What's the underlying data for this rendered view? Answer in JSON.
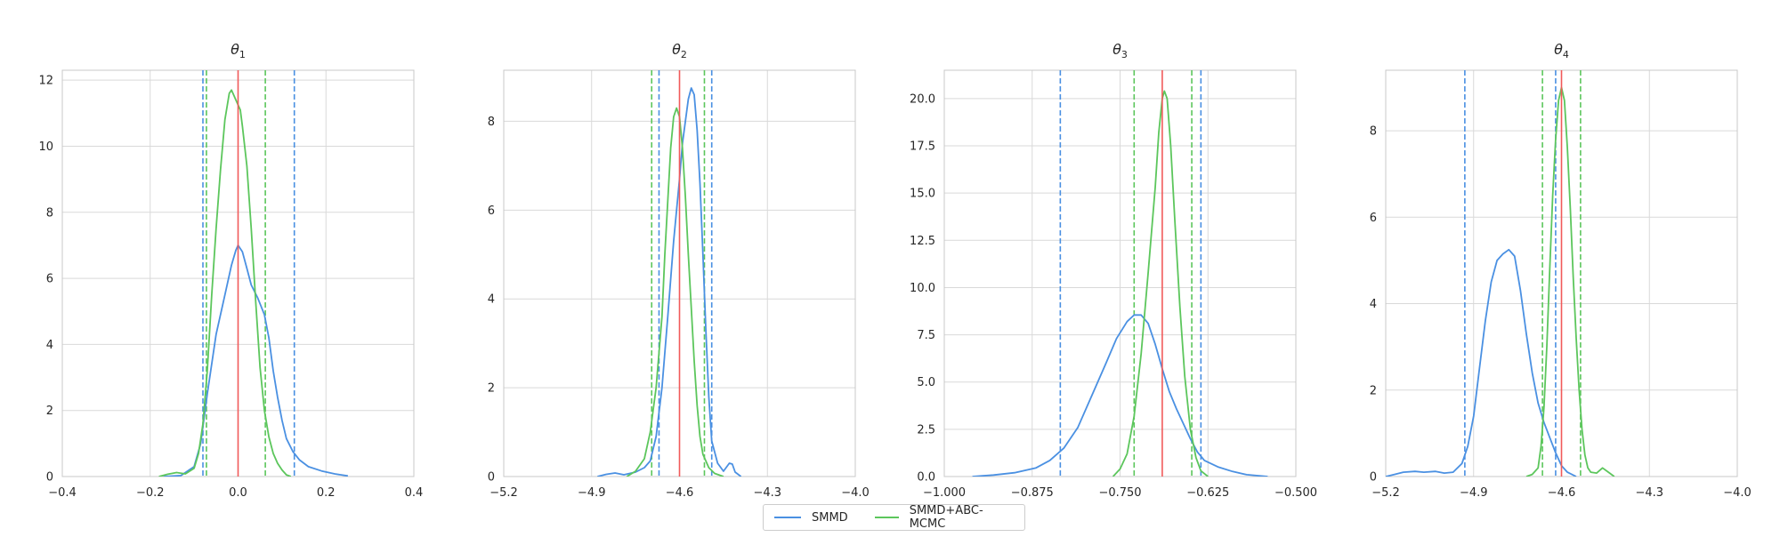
{
  "chart_data": [
    {
      "type": "line",
      "title": "θ1",
      "title_base": "θ",
      "title_sub": "1",
      "xlim": [
        -0.4,
        0.4
      ],
      "ylim": [
        0,
        12.3
      ],
      "xticks": [
        -0.4,
        -0.2,
        0.0,
        0.2,
        0.4
      ],
      "xtick_labels": [
        "−0.4",
        "−0.2",
        "0.0",
        "0.2",
        "0.4"
      ],
      "yticks": [
        0,
        2,
        4,
        6,
        8,
        10,
        12
      ],
      "ytick_labels": [
        "0",
        "2",
        "4",
        "6",
        "8",
        "10",
        "12"
      ],
      "grid": true,
      "true_value": 0.0,
      "series": [
        {
          "name": "SMMD",
          "color": "#4a90e2",
          "points": [
            [
              -0.17,
              0
            ],
            [
              -0.13,
              0.03
            ],
            [
              -0.1,
              0.3
            ],
            [
              -0.085,
              1
            ],
            [
              -0.07,
              2.5
            ],
            [
              -0.05,
              4.3
            ],
            [
              -0.03,
              5.5
            ],
            [
              -0.015,
              6.4
            ],
            [
              -0.005,
              6.85
            ],
            [
              0.0,
              7.0
            ],
            [
              0.01,
              6.8
            ],
            [
              0.02,
              6.3
            ],
            [
              0.03,
              5.8
            ],
            [
              0.045,
              5.4
            ],
            [
              0.06,
              4.9
            ],
            [
              0.07,
              4.2
            ],
            [
              0.08,
              3.2
            ],
            [
              0.09,
              2.4
            ],
            [
              0.1,
              1.7
            ],
            [
              0.11,
              1.15
            ],
            [
              0.125,
              0.75
            ],
            [
              0.14,
              0.5
            ],
            [
              0.16,
              0.3
            ],
            [
              0.19,
              0.17
            ],
            [
              0.22,
              0.08
            ],
            [
              0.25,
              0.02
            ]
          ],
          "ci": [
            -0.08,
            0.128
          ]
        },
        {
          "name": "SMMD+ABC-MCMC",
          "color": "#5cc65c",
          "points": [
            [
              -0.18,
              0
            ],
            [
              -0.16,
              0.07
            ],
            [
              -0.14,
              0.12
            ],
            [
              -0.12,
              0.08
            ],
            [
              -0.1,
              0.25
            ],
            [
              -0.09,
              0.7
            ],
            [
              -0.08,
              1.6
            ],
            [
              -0.07,
              3.2
            ],
            [
              -0.06,
              5.5
            ],
            [
              -0.05,
              7.5
            ],
            [
              -0.04,
              9.3
            ],
            [
              -0.03,
              10.8
            ],
            [
              -0.02,
              11.6
            ],
            [
              -0.015,
              11.7
            ],
            [
              -0.005,
              11.4
            ],
            [
              0.005,
              11.1
            ],
            [
              0.01,
              10.6
            ],
            [
              0.02,
              9.4
            ],
            [
              0.03,
              7.5
            ],
            [
              0.04,
              5.3
            ],
            [
              0.05,
              3.3
            ],
            [
              0.06,
              2.0
            ],
            [
              0.07,
              1.2
            ],
            [
              0.08,
              0.7
            ],
            [
              0.09,
              0.4
            ],
            [
              0.1,
              0.2
            ],
            [
              0.11,
              0.05
            ],
            [
              0.12,
              0
            ]
          ],
          "ci": [
            -0.072,
            0.062
          ]
        }
      ]
    },
    {
      "type": "line",
      "title": "θ2",
      "title_base": "θ",
      "title_sub": "2",
      "xlim": [
        -5.2,
        -4.0
      ],
      "ylim": [
        0,
        9.15
      ],
      "xticks": [
        -5.2,
        -4.9,
        -4.6,
        -4.3,
        -4.0
      ],
      "xtick_labels": [
        "−5.2",
        "−4.9",
        "−4.6",
        "−4.3",
        "−4.0"
      ],
      "yticks": [
        0,
        2,
        4,
        6,
        8
      ],
      "ytick_labels": [
        "0",
        "2",
        "4",
        "6",
        "8"
      ],
      "grid": true,
      "true_value": -4.6,
      "series": [
        {
          "name": "SMMD",
          "color": "#4a90e2",
          "points": [
            [
              -4.88,
              0
            ],
            [
              -4.85,
              0.05
            ],
            [
              -4.82,
              0.08
            ],
            [
              -4.79,
              0.04
            ],
            [
              -4.75,
              0.1
            ],
            [
              -4.72,
              0.2
            ],
            [
              -4.7,
              0.35
            ],
            [
              -4.68,
              0.9
            ],
            [
              -4.66,
              2.0
            ],
            [
              -4.64,
              3.6
            ],
            [
              -4.62,
              5.3
            ],
            [
              -4.6,
              6.7
            ],
            [
              -4.59,
              7.5
            ],
            [
              -4.58,
              8.0
            ],
            [
              -4.57,
              8.5
            ],
            [
              -4.56,
              8.75
            ],
            [
              -4.55,
              8.6
            ],
            [
              -4.54,
              7.8
            ],
            [
              -4.53,
              6.6
            ],
            [
              -4.52,
              5.0
            ],
            [
              -4.51,
              3.3
            ],
            [
              -4.5,
              1.8
            ],
            [
              -4.49,
              0.8
            ],
            [
              -4.47,
              0.3
            ],
            [
              -4.45,
              0.12
            ],
            [
              -4.43,
              0.3
            ],
            [
              -4.42,
              0.28
            ],
            [
              -4.41,
              0.1
            ],
            [
              -4.39,
              0
            ]
          ],
          "ci": [
            -4.67,
            -4.49
          ]
        },
        {
          "name": "SMMD+ABC-MCMC",
          "color": "#5cc65c",
          "points": [
            [
              -4.78,
              0
            ],
            [
              -4.75,
              0.12
            ],
            [
              -4.72,
              0.4
            ],
            [
              -4.7,
              1.0
            ],
            [
              -4.68,
              2.0
            ],
            [
              -4.66,
              3.6
            ],
            [
              -4.65,
              5.0
            ],
            [
              -4.64,
              6.2
            ],
            [
              -4.63,
              7.4
            ],
            [
              -4.62,
              8.1
            ],
            [
              -4.61,
              8.3
            ],
            [
              -4.6,
              8.1
            ],
            [
              -4.59,
              7.4
            ],
            [
              -4.58,
              6.3
            ],
            [
              -4.57,
              5.0
            ],
            [
              -4.56,
              3.8
            ],
            [
              -4.55,
              2.6
            ],
            [
              -4.54,
              1.6
            ],
            [
              -4.53,
              0.9
            ],
            [
              -4.52,
              0.5
            ],
            [
              -4.5,
              0.2
            ],
            [
              -4.48,
              0.07
            ],
            [
              -4.45,
              0
            ]
          ],
          "ci": [
            -4.695,
            -4.515
          ]
        }
      ]
    },
    {
      "type": "line",
      "title": "θ3",
      "title_base": "θ",
      "title_sub": "3",
      "xlim": [
        -1.0,
        -0.5
      ],
      "ylim": [
        0,
        21.5
      ],
      "xticks": [
        -1.0,
        -0.875,
        -0.75,
        -0.625,
        -0.5
      ],
      "xtick_labels": [
        "−1.000",
        "−0.875",
        "−0.750",
        "−0.625",
        "−0.500"
      ],
      "yticks": [
        0,
        2.5,
        5,
        7.5,
        10,
        12.5,
        15,
        17.5,
        20
      ],
      "ytick_labels": [
        "0.0",
        "2.5",
        "5.0",
        "7.5",
        "10.0",
        "12.5",
        "15.0",
        "17.5",
        "20.0"
      ],
      "grid": true,
      "true_value": -0.69,
      "series": [
        {
          "name": "SMMD",
          "color": "#4a90e2",
          "points": [
            [
              -0.96,
              0
            ],
            [
              -0.93,
              0.08
            ],
            [
              -0.9,
              0.2
            ],
            [
              -0.87,
              0.45
            ],
            [
              -0.85,
              0.85
            ],
            [
              -0.83,
              1.5
            ],
            [
              -0.81,
              2.6
            ],
            [
              -0.79,
              4.3
            ],
            [
              -0.77,
              6.0
            ],
            [
              -0.755,
              7.3
            ],
            [
              -0.74,
              8.2
            ],
            [
              -0.73,
              8.55
            ],
            [
              -0.72,
              8.55
            ],
            [
              -0.71,
              8.1
            ],
            [
              -0.7,
              7.0
            ],
            [
              -0.69,
              5.7
            ],
            [
              -0.68,
              4.5
            ],
            [
              -0.67,
              3.6
            ],
            [
              -0.66,
              2.8
            ],
            [
              -0.65,
              2.0
            ],
            [
              -0.64,
              1.3
            ],
            [
              -0.63,
              0.85
            ],
            [
              -0.61,
              0.5
            ],
            [
              -0.59,
              0.27
            ],
            [
              -0.57,
              0.1
            ],
            [
              -0.54,
              0
            ]
          ],
          "ci": [
            -0.835,
            -0.635
          ]
        },
        {
          "name": "SMMD+ABC-MCMC",
          "color": "#5cc65c",
          "points": [
            [
              -0.76,
              0
            ],
            [
              -0.75,
              0.4
            ],
            [
              -0.74,
              1.2
            ],
            [
              -0.73,
              3.2
            ],
            [
              -0.72,
              6.5
            ],
            [
              -0.71,
              10.8
            ],
            [
              -0.7,
              15.3
            ],
            [
              -0.695,
              18.2
            ],
            [
              -0.69,
              20.0
            ],
            [
              -0.687,
              20.4
            ],
            [
              -0.683,
              20.0
            ],
            [
              -0.678,
              17.5
            ],
            [
              -0.672,
              13.5
            ],
            [
              -0.665,
              9.0
            ],
            [
              -0.658,
              5.3
            ],
            [
              -0.65,
              2.5
            ],
            [
              -0.642,
              1.0
            ],
            [
              -0.635,
              0.3
            ],
            [
              -0.625,
              0
            ]
          ],
          "ci": [
            -0.73,
            -0.648
          ]
        }
      ]
    },
    {
      "type": "line",
      "title": "θ4",
      "title_base": "θ",
      "title_sub": "4",
      "xlim": [
        -5.2,
        -4.0
      ],
      "ylim": [
        0,
        9.4
      ],
      "xticks": [
        -5.2,
        -4.9,
        -4.6,
        -4.3,
        -4.0
      ],
      "xtick_labels": [
        "−5.2",
        "−4.9",
        "−4.6",
        "−4.3",
        "−4.0"
      ],
      "yticks": [
        0,
        2,
        4,
        6,
        8
      ],
      "ytick_labels": [
        "0",
        "2",
        "4",
        "6",
        "8"
      ],
      "grid": true,
      "true_value": -4.6,
      "series": [
        {
          "name": "SMMD",
          "color": "#4a90e2",
          "points": [
            [
              -5.2,
              0
            ],
            [
              -5.17,
              0.05
            ],
            [
              -5.14,
              0.1
            ],
            [
              -5.1,
              0.12
            ],
            [
              -5.07,
              0.1
            ],
            [
              -5.03,
              0.12
            ],
            [
              -5.0,
              0.08
            ],
            [
              -4.97,
              0.1
            ],
            [
              -4.94,
              0.3
            ],
            [
              -4.92,
              0.7
            ],
            [
              -4.9,
              1.4
            ],
            [
              -4.88,
              2.5
            ],
            [
              -4.86,
              3.6
            ],
            [
              -4.84,
              4.5
            ],
            [
              -4.82,
              5.0
            ],
            [
              -4.8,
              5.15
            ],
            [
              -4.78,
              5.25
            ],
            [
              -4.76,
              5.1
            ],
            [
              -4.74,
              4.3
            ],
            [
              -4.72,
              3.3
            ],
            [
              -4.7,
              2.4
            ],
            [
              -4.68,
              1.7
            ],
            [
              -4.66,
              1.25
            ],
            [
              -4.64,
              0.9
            ],
            [
              -4.62,
              0.55
            ],
            [
              -4.6,
              0.25
            ],
            [
              -4.58,
              0.1
            ],
            [
              -4.55,
              0
            ]
          ],
          "ci": [
            -4.93,
            -4.62
          ]
        },
        {
          "name": "SMMD+ABC-MCMC",
          "color": "#5cc65c",
          "points": [
            [
              -4.72,
              0
            ],
            [
              -4.7,
              0.05
            ],
            [
              -4.68,
              0.2
            ],
            [
              -4.67,
              0.7
            ],
            [
              -4.66,
              1.6
            ],
            [
              -4.65,
              3.0
            ],
            [
              -4.64,
              4.8
            ],
            [
              -4.63,
              6.5
            ],
            [
              -4.62,
              7.8
            ],
            [
              -4.61,
              8.7
            ],
            [
              -4.6,
              9.0
            ],
            [
              -4.59,
              8.7
            ],
            [
              -4.58,
              7.6
            ],
            [
              -4.57,
              6.2
            ],
            [
              -4.56,
              4.6
            ],
            [
              -4.55,
              3.2
            ],
            [
              -4.54,
              2.0
            ],
            [
              -4.53,
              1.1
            ],
            [
              -4.52,
              0.5
            ],
            [
              -4.51,
              0.2
            ],
            [
              -4.5,
              0.1
            ],
            [
              -4.48,
              0.08
            ],
            [
              -4.46,
              0.2
            ],
            [
              -4.44,
              0.1
            ],
            [
              -4.42,
              0
            ]
          ],
          "ci": [
            -4.665,
            -4.535
          ]
        }
      ]
    }
  ],
  "legend": {
    "placement": "bottom-center",
    "entries": [
      {
        "name": "SMMD",
        "color": "#4a90e2"
      },
      {
        "name": "SMMD+ABC-MCMC",
        "color": "#5cc65c"
      }
    ]
  },
  "colors": {
    "true_line": "#f15a5a",
    "grid": "#d9d9d9",
    "axis": "#c8c8c8"
  }
}
